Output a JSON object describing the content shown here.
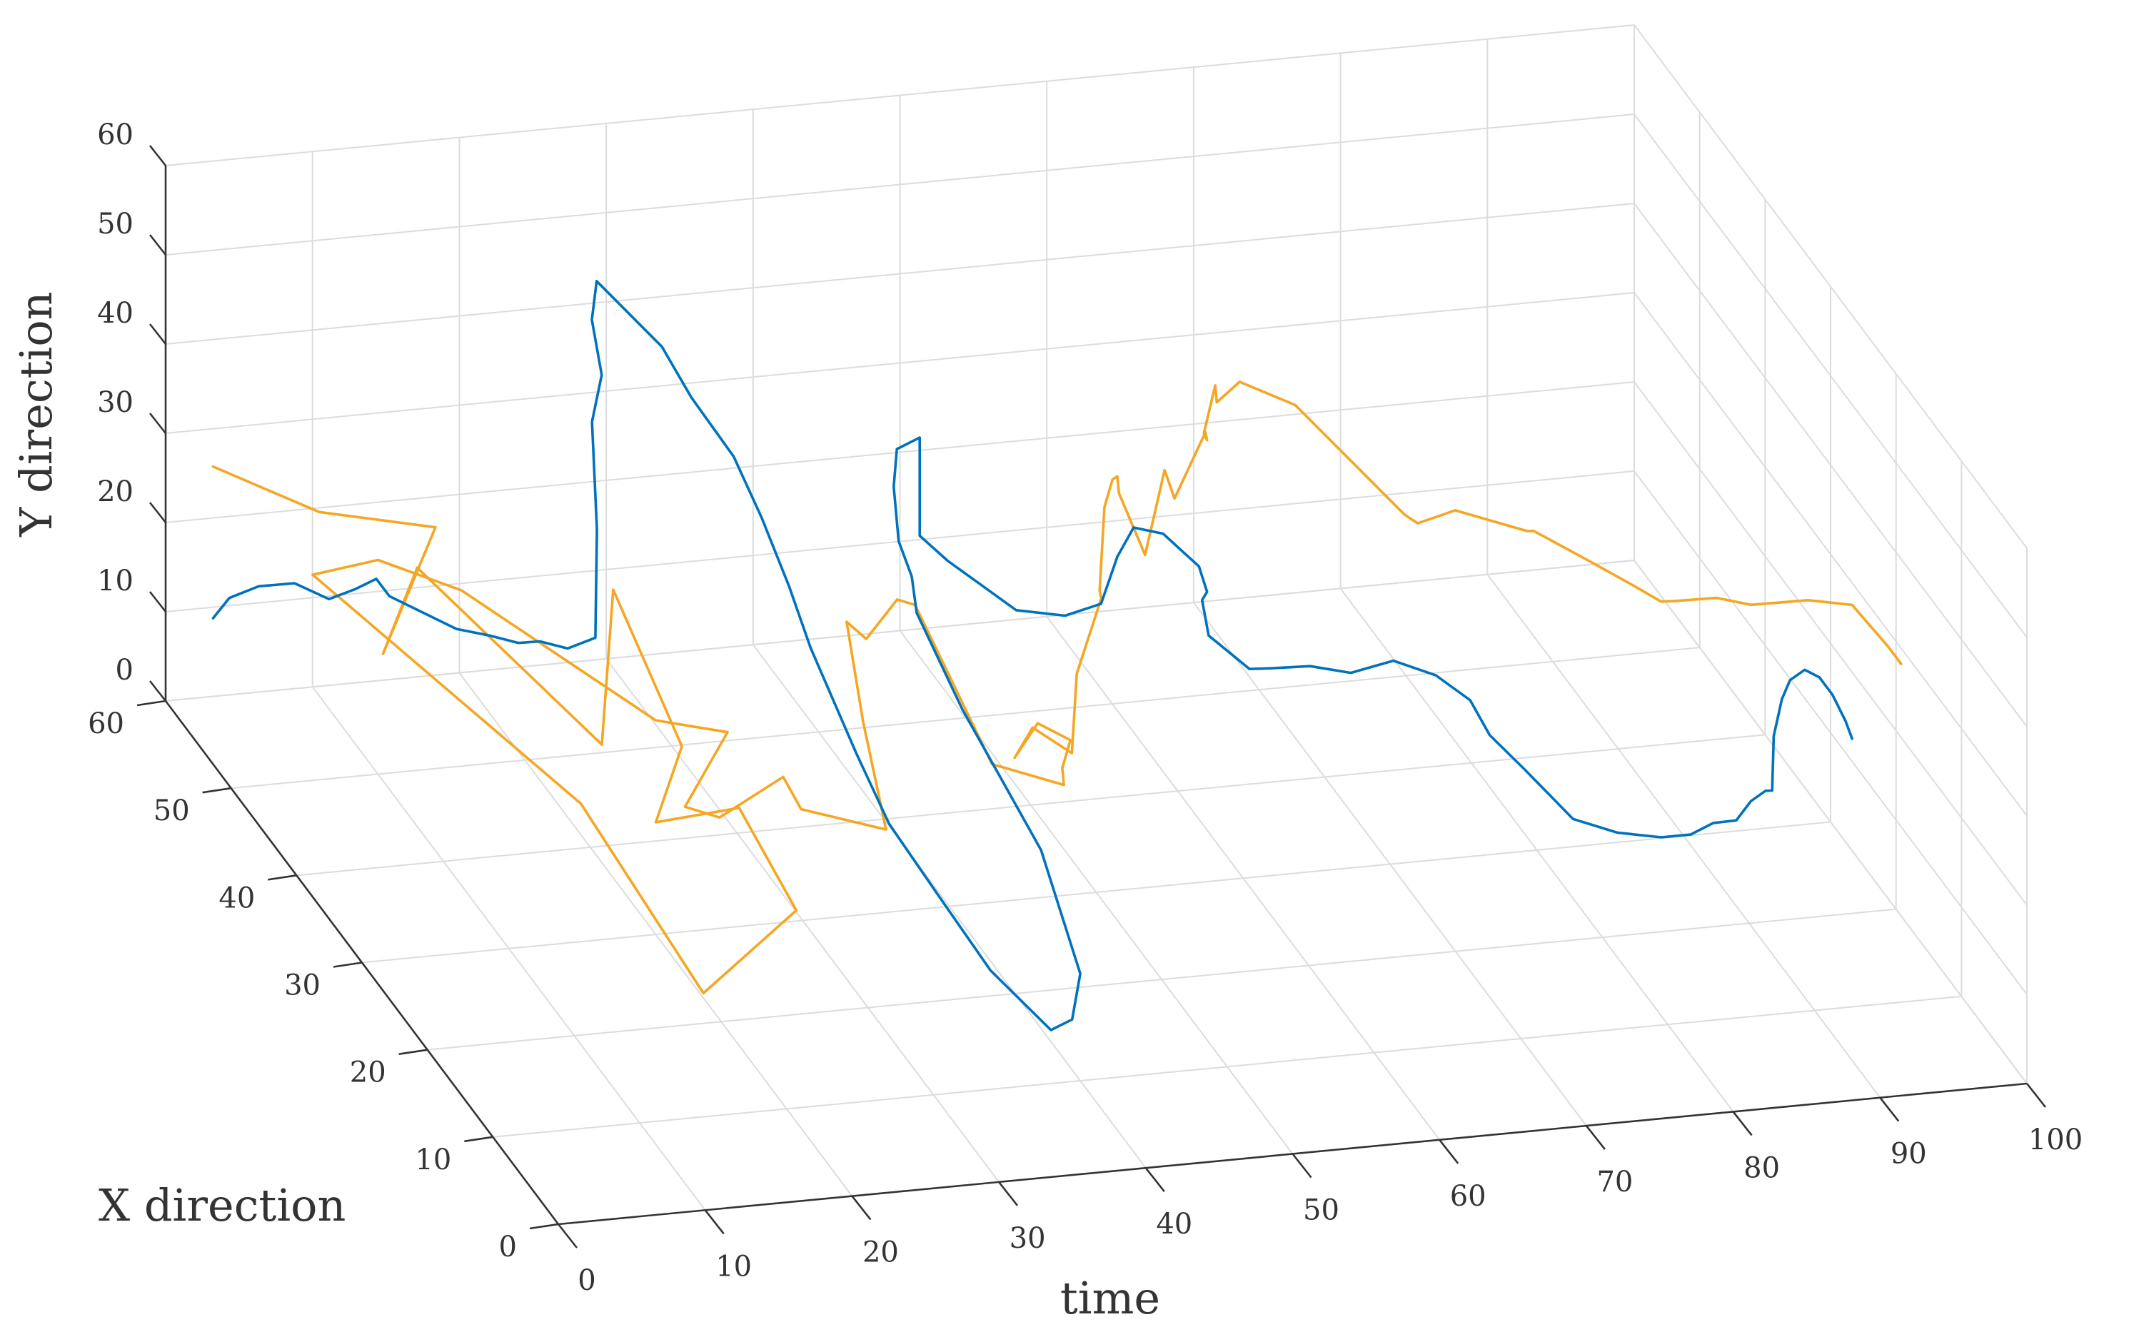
{
  "chart_data": {
    "type": "line",
    "view": "3d",
    "xlabel": "time",
    "ylabel": "X direction",
    "zlabel": "Y direction",
    "xlim": [
      0,
      100
    ],
    "ylim": [
      0,
      60
    ],
    "zlim": [
      0,
      60
    ],
    "xticks": [
      "0",
      "10",
      "20",
      "30",
      "40",
      "50",
      "60",
      "70",
      "80",
      "90",
      "100"
    ],
    "yticks": [
      "0",
      "10",
      "20",
      "30",
      "40",
      "50",
      "60"
    ],
    "zticks": [
      "0",
      "10",
      "20",
      "30",
      "40",
      "50",
      "60"
    ],
    "grid": true,
    "series": [
      {
        "color": "#0072BD",
        "points": [
          [
            1,
            55,
            14
          ],
          [
            3,
            57,
            14
          ],
          [
            5,
            57,
            15
          ],
          [
            7,
            56,
            16
          ],
          [
            8,
            53,
            17
          ],
          [
            8.5,
            50,
            21
          ],
          [
            9,
            48,
            24
          ],
          [
            9,
            46,
            24
          ],
          [
            10,
            38,
            28
          ],
          [
            11,
            35,
            30
          ],
          [
            12,
            33,
            31
          ],
          [
            13,
            32,
            32
          ],
          [
            14,
            30,
            33
          ],
          [
            15,
            28,
            36
          ],
          [
            16,
            30,
            46
          ],
          [
            17,
            33,
            55
          ],
          [
            19,
            36,
            57
          ],
          [
            21,
            42,
            57
          ],
          [
            24,
            48,
            55
          ],
          [
            28,
            47,
            48
          ],
          [
            30,
            47,
            42
          ],
          [
            32,
            45,
            37
          ],
          [
            33,
            43,
            32
          ],
          [
            34,
            41,
            26
          ],
          [
            35,
            40,
            20
          ],
          [
            35,
            33,
            15
          ],
          [
            35,
            28,
            12
          ],
          [
            36,
            23,
            9
          ],
          [
            37,
            17,
            6
          ],
          [
            38,
            10,
            6
          ],
          [
            39,
            9,
            8
          ],
          [
            40,
            10,
            12
          ],
          [
            40,
            16,
            20
          ],
          [
            40,
            28,
            24
          ],
          [
            40,
            35,
            28
          ],
          [
            41,
            38,
            29
          ],
          [
            41,
            40,
            31
          ],
          [
            42,
            43,
            34
          ],
          [
            43,
            45,
            34
          ],
          [
            44,
            47,
            34
          ],
          [
            46,
            48,
            34
          ],
          [
            46,
            48,
            30
          ],
          [
            46,
            48,
            23
          ],
          [
            47,
            46,
            22
          ],
          [
            48,
            43,
            22
          ],
          [
            49,
            40,
            22
          ],
          [
            51,
            37,
            24
          ],
          [
            53,
            36,
            26
          ],
          [
            55,
            38,
            29
          ],
          [
            57,
            40,
            30
          ],
          [
            59,
            40,
            29
          ],
          [
            61,
            39,
            26
          ],
          [
            62,
            40,
            22
          ],
          [
            63,
            43,
            18
          ],
          [
            63,
            42,
            15
          ],
          [
            64,
            38,
            15
          ],
          [
            64,
            35,
            18
          ],
          [
            65,
            31,
            22
          ],
          [
            66,
            27,
            25
          ],
          [
            68,
            25,
            28
          ],
          [
            70,
            23,
            28
          ],
          [
            71,
            20,
            28
          ],
          [
            71,
            17,
            27
          ],
          [
            72,
            14,
            26
          ],
          [
            74,
            11,
            23
          ],
          [
            77,
            11,
            21
          ],
          [
            80,
            11,
            20
          ],
          [
            82,
            11,
            20
          ],
          [
            84,
            12,
            20
          ],
          [
            86,
            13,
            19
          ],
          [
            87,
            13,
            21
          ],
          [
            88,
            13,
            22
          ],
          [
            88,
            12,
            23
          ],
          [
            89,
            14,
            27
          ],
          [
            90,
            15,
            30
          ],
          [
            91,
            16,
            31
          ],
          [
            92,
            16,
            32
          ],
          [
            93,
            16,
            31
          ],
          [
            93,
            14,
            31
          ],
          [
            93,
            12,
            30
          ],
          [
            93,
            11,
            29
          ]
        ]
      },
      {
        "color": "#F5A623",
        "points": [
          [
            1,
            55,
            31
          ],
          [
            6,
            50,
            30
          ],
          [
            5,
            30,
            48
          ],
          [
            5,
            38,
            26
          ],
          [
            10,
            44,
            29
          ],
          [
            15,
            27,
            25
          ],
          [
            18,
            32,
            37
          ],
          [
            20,
            26,
            25
          ],
          [
            16,
            21,
            22
          ],
          [
            19,
            15,
            29
          ],
          [
            22,
            13,
            19
          ],
          [
            13,
            7,
            17
          ],
          [
            10,
            19,
            27
          ],
          [
            6,
            51,
            22
          ],
          [
            10,
            50,
            24
          ],
          [
            13,
            44,
            26
          ],
          [
            20,
            30,
            24
          ],
          [
            24,
            28,
            24
          ],
          [
            22,
            30,
            14
          ],
          [
            19,
            18,
            25
          ],
          [
            22,
            15,
            32
          ],
          [
            25,
            19,
            24
          ],
          [
            29,
            15,
            25
          ],
          [
            31,
            23,
            29
          ],
          [
            33,
            30,
            33
          ],
          [
            33,
            27,
            34
          ],
          [
            36,
            29,
            36
          ],
          [
            39,
            33,
            31
          ],
          [
            38,
            19,
            27
          ],
          [
            42,
            17,
            26
          ],
          [
            41,
            15,
            30
          ],
          [
            42,
            16,
            32
          ],
          [
            42,
            21,
            29
          ],
          [
            44,
            29,
            17
          ],
          [
            47,
            33,
            16
          ],
          [
            47,
            27,
            19
          ],
          [
            46,
            24,
            31
          ],
          [
            49,
            27,
            36
          ],
          [
            48,
            25,
            39
          ],
          [
            51,
            31,
            42
          ],
          [
            52,
            32,
            44
          ],
          [
            55,
            38,
            38
          ],
          [
            56,
            40,
            34
          ],
          [
            56,
            36,
            31
          ],
          [
            60,
            42,
            34
          ],
          [
            58,
            36,
            37
          ],
          [
            61,
            38,
            42
          ],
          [
            62,
            40,
            39
          ],
          [
            60,
            36,
            44
          ],
          [
            63,
            41,
            44
          ],
          [
            64,
            43,
            40
          ],
          [
            66,
            44,
            41
          ],
          [
            68,
            40,
            42
          ],
          [
            71,
            30,
            39
          ],
          [
            71,
            28,
            40
          ],
          [
            74,
            29,
            40
          ],
          [
            78,
            27,
            39
          ],
          [
            78,
            26,
            40
          ],
          [
            81,
            24,
            38
          ],
          [
            83,
            22,
            37
          ],
          [
            84,
            20,
            37
          ],
          [
            84,
            18,
            39
          ],
          [
            86,
            16,
            41
          ],
          [
            87,
            13,
            43
          ],
          [
            90,
            11,
            45
          ],
          [
            93,
            11,
            44
          ],
          [
            95,
            10,
            40
          ],
          [
            95,
            8,
            40
          ]
        ]
      }
    ]
  }
}
